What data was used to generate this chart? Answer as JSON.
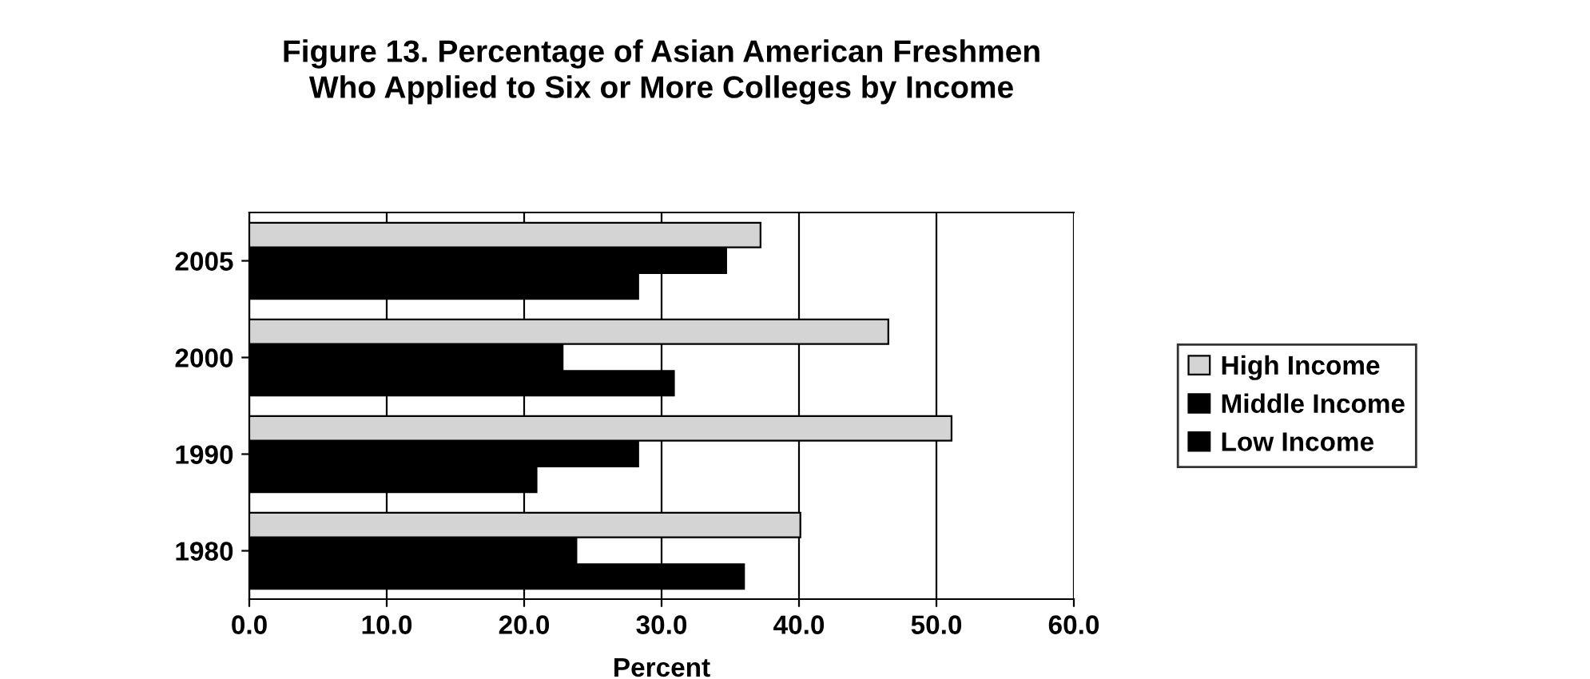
{
  "chart_data": {
    "type": "bar",
    "orientation": "horizontal",
    "title": "Figure 13. Percentage of Asian American Freshmen\nWho Applied to Six or More Colleges by Income",
    "xlabel": "Percent",
    "categories": [
      "2005",
      "2000",
      "1990",
      "1980"
    ],
    "series": [
      {
        "name": "High Income",
        "color": "#d4d4d4",
        "values": [
          37.2,
          46.5,
          51.1,
          40.1
        ]
      },
      {
        "name": "Middle Income",
        "color": "#000000",
        "values": [
          34.7,
          22.8,
          28.3,
          23.8
        ]
      },
      {
        "name": "Low Income",
        "color": "#000000",
        "values": [
          28.3,
          30.9,
          20.9,
          36.0
        ]
      }
    ],
    "xlim": [
      0,
      60
    ],
    "xticks": [
      {
        "value": 0,
        "label": "0.0"
      },
      {
        "value": 10,
        "label": "10.0"
      },
      {
        "value": 20,
        "label": "20.0"
      },
      {
        "value": 30,
        "label": "30.0"
      },
      {
        "value": 40,
        "label": "40.0"
      },
      {
        "value": 50,
        "label": "50.0"
      },
      {
        "value": 60,
        "label": "60.0"
      }
    ],
    "grid": "x",
    "legend": "right"
  }
}
